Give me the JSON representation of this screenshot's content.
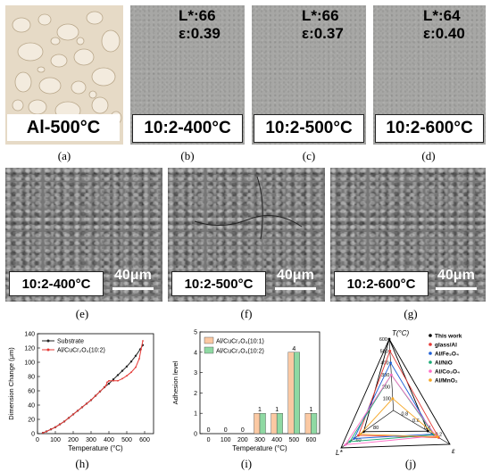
{
  "top_panels": [
    {
      "label": "Al-500°C",
      "lstar": "",
      "eps": "",
      "sub": "(a)"
    },
    {
      "label": "10:2-400°C",
      "lstar": "L*:66",
      "eps": "ε:0.39",
      "sub": "(b)"
    },
    {
      "label": "10:2-500°C",
      "lstar": "L*:66",
      "eps": "ε:0.37",
      "sub": "(c)"
    },
    {
      "label": "10:2-600°C",
      "lstar": "L*:64",
      "eps": "ε:0.40",
      "sub": "(d)"
    }
  ],
  "sem_panels": [
    {
      "label": "10:2-400°C",
      "scale": "40μm",
      "sub": "(e)"
    },
    {
      "label": "10:2-500°C",
      "scale": "40μm",
      "sub": "(f)"
    },
    {
      "label": "10:2-600°C",
      "scale": "40μm",
      "sub": "(g)"
    }
  ],
  "bottom_subs": {
    "h": "(h)",
    "i": "(i)",
    "j": "(j)"
  },
  "chart_data": [
    {
      "type": "line",
      "xlabel": "Temperature (°C)",
      "ylabel": "Dimension Change (μm)",
      "xlim": [
        0,
        650
      ],
      "ylim": [
        0,
        140
      ],
      "xticks": [
        "0",
        "100",
        "200",
        "300",
        "400",
        "500",
        "600"
      ],
      "yticks": [
        "0",
        "20",
        "40",
        "60",
        "80",
        "100",
        "120",
        "140"
      ],
      "legend_position": "top-left",
      "series": [
        {
          "name": "Substrate",
          "color": "#222222",
          "x": [
            30,
            50,
            75,
            100,
            125,
            150,
            175,
            200,
            225,
            250,
            275,
            300,
            325,
            350,
            375,
            400,
            425,
            450,
            475,
            500,
            525,
            550,
            575,
            590
          ],
          "y": [
            1,
            3,
            6,
            9,
            13,
            17,
            22,
            27,
            32,
            37,
            42,
            47,
            53,
            59,
            65,
            70,
            76,
            82,
            88,
            94,
            101,
            109,
            118,
            124
          ]
        },
        {
          "name": "Al/CuCr₂O₄(10:2)",
          "color": "#e53935",
          "x": [
            30,
            50,
            75,
            100,
            125,
            150,
            175,
            200,
            225,
            250,
            275,
            300,
            325,
            350,
            375,
            385,
            390,
            400,
            425,
            450,
            475,
            500,
            525,
            550,
            570,
            580,
            590
          ],
          "y": [
            1,
            3,
            6,
            9,
            13,
            17,
            22,
            27,
            32,
            37,
            42,
            47,
            53,
            59,
            65,
            68,
            72,
            74,
            74,
            74,
            77,
            81,
            86,
            93,
            105,
            118,
            130
          ]
        }
      ]
    },
    {
      "type": "bar",
      "xlabel": "Temperature (°C)",
      "ylabel": "Adhesion level",
      "ylim": [
        0,
        5
      ],
      "yticks": [
        "0",
        "1",
        "2",
        "3",
        "4",
        "5"
      ],
      "categories": [
        "0",
        "100",
        "200",
        "300",
        "400",
        "500",
        "600"
      ],
      "legend_position": "top-left",
      "series": [
        {
          "name": "Al/CuCr₂O₄(10:1)",
          "color": "#fbc9a3",
          "values": [
            0,
            0,
            0,
            1,
            1,
            4,
            1
          ]
        },
        {
          "name": "Al/CuCr₂O₄(10:2)",
          "color": "#8fd9a3",
          "values": [
            0,
            0,
            0,
            1,
            1,
            4,
            1
          ]
        }
      ],
      "value_labels": [
        "0",
        "0",
        "0",
        "1",
        "1",
        "4",
        "1"
      ]
    },
    {
      "type": "radar",
      "axes": [
        {
          "name": "T(°C)",
          "ticks": [
            "100",
            "200",
            "300",
            "400",
            "500",
            "600"
          ],
          "max": 600
        },
        {
          "name": "ε",
          "ticks": [
            "0.8",
            "0.6",
            "0.4",
            "0.2"
          ],
          "max": 1.0
        },
        {
          "name": "L*",
          "ticks": [
            "80",
            "60"
          ],
          "max": 100
        }
      ],
      "legend_position": "top-right",
      "series": [
        {
          "name": "This work",
          "color": "#000000",
          "T": 600,
          "eps": 0.39,
          "L": 66
        },
        {
          "name": "glass/Al",
          "color": "#e53935",
          "T": 500,
          "eps": 0.2,
          "L": 60
        },
        {
          "name": "Al/Fe₃O₄",
          "color": "#1e5fd6",
          "T": 400,
          "eps": 0.3,
          "L": 55
        },
        {
          "name": "Al/NiO",
          "color": "#19a974",
          "T": 300,
          "eps": 0.28,
          "L": 50
        },
        {
          "name": "Al/Co₃O₄",
          "color": "#ff6ec7",
          "T": 300,
          "eps": 0.25,
          "L": 45
        },
        {
          "name": "Al/MnO₂",
          "color": "#f5a623",
          "T": 100,
          "eps": 0.22,
          "L": 62
        }
      ]
    }
  ]
}
